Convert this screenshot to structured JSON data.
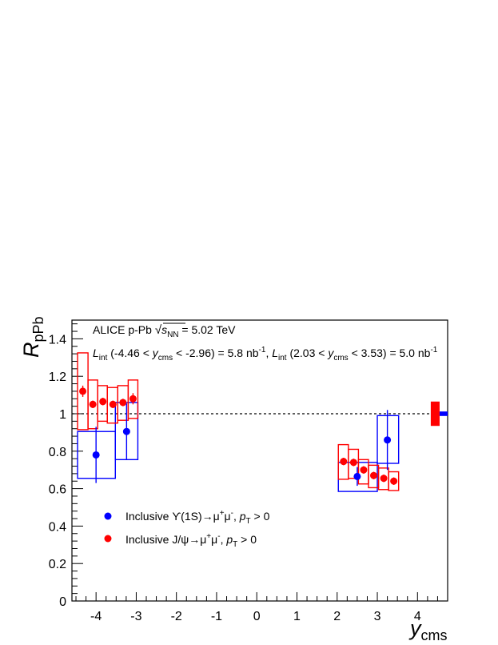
{
  "chart_data": {
    "type": "scatter",
    "title": "",
    "xlabel": "y",
    "xlabel_sub": "cms",
    "ylabel": "R",
    "ylabel_sub": "pPb",
    "xlim": [
      -4.6,
      4.75
    ],
    "ylim": [
      0,
      1.5
    ],
    "x_ticks": [
      -4,
      -3,
      -2,
      -1,
      0,
      1,
      2,
      3,
      4
    ],
    "y_ticks": [
      0,
      0.2,
      0.4,
      0.6,
      0.8,
      1,
      1.2,
      1.4
    ],
    "reference_line": 1,
    "annotation": {
      "line1_prefix": "ALICE p-Pb ",
      "line1_sqrt": "s",
      "line1_sub": "NN",
      "line1_suffix": " = 5.02 TeV",
      "line2_a": "L",
      "line2_a_sub": "int",
      "line2_b": " (-4.46 < ",
      "line2_y": "y",
      "line2_y_sub": "cms",
      "line2_c": " < -2.96) = 5.8 nb",
      "line2_c_sup": "-1",
      "line2_d": ",  ",
      "line2_e": "L",
      "line2_e_sub": "int",
      "line2_f": " (2.03 < ",
      "line2_g": "y",
      "line2_g_sub": "cms",
      "line2_h": " < 3.53) = 5.0 nb",
      "line2_h_sup": "-1"
    },
    "legend": {
      "position": "bottom-left",
      "entries": [
        {
          "prefix": "Inclusive ϒ(1S)→μ",
          "sup1": "+",
          "mid": "μ",
          "sup2": "-",
          "post": ", ",
          "p": "p",
          "psub": "T",
          "tail": " > 0",
          "color": "#0000ff"
        },
        {
          "prefix": "Inclusive J/ψ→μ",
          "sup1": "+",
          "mid": "μ",
          "sup2": "-",
          "post": ", ",
          "p": "p",
          "psub": "T",
          "tail": " > 0",
          "color": "#ff0000"
        }
      ]
    },
    "series": [
      {
        "name": "Inclusive ϒ(1S)→μ+μ-, pT > 0",
        "color": "#0000ff",
        "points": [
          {
            "x": -4.0,
            "y": 0.78,
            "yerr": 0.15,
            "sys_xlo": -4.46,
            "sys_xhi": -3.52,
            "sys_ylo": 0.655,
            "sys_yhi": 0.905
          },
          {
            "x": -3.24,
            "y": 0.905,
            "yerr": 0.15,
            "sys_xlo": -3.52,
            "sys_xhi": -2.96,
            "sys_ylo": 0.755,
            "sys_yhi": 1.06
          },
          {
            "x": 2.5,
            "y": 0.665,
            "yerr": 0.05,
            "sys_xlo": 2.03,
            "sys_xhi": 3.0,
            "sys_ylo": 0.585,
            "sys_yhi": 0.74
          },
          {
            "x": 3.25,
            "y": 0.86,
            "yerr": 0.16,
            "sys_xlo": 3.0,
            "sys_xhi": 3.53,
            "sys_ylo": 0.735,
            "sys_yhi": 0.99
          }
        ]
      },
      {
        "name": "Inclusive J/ψ→μ+μ-, pT > 0",
        "color": "#ff0000",
        "points": [
          {
            "x": -4.33,
            "y": 1.12,
            "yerr": 0.03,
            "sys_xlo": -4.46,
            "sys_xhi": -4.2,
            "sys_ylo": 0.915,
            "sys_yhi": 1.325
          },
          {
            "x": -4.08,
            "y": 1.05,
            "yerr": 0.02,
            "sys_xlo": -4.2,
            "sys_xhi": -3.96,
            "sys_ylo": 0.92,
            "sys_yhi": 1.18
          },
          {
            "x": -3.83,
            "y": 1.065,
            "yerr": 0.02,
            "sys_xlo": -3.96,
            "sys_xhi": -3.72,
            "sys_ylo": 0.96,
            "sys_yhi": 1.15
          },
          {
            "x": -3.58,
            "y": 1.05,
            "yerr": 0.02,
            "sys_xlo": -3.72,
            "sys_xhi": -3.46,
            "sys_ylo": 0.95,
            "sys_yhi": 1.14
          },
          {
            "x": -3.33,
            "y": 1.06,
            "yerr": 0.02,
            "sys_xlo": -3.46,
            "sys_xhi": -3.2,
            "sys_ylo": 0.965,
            "sys_yhi": 1.15
          },
          {
            "x": -3.08,
            "y": 1.08,
            "yerr": 0.03,
            "sys_xlo": -3.2,
            "sys_xhi": -2.96,
            "sys_ylo": 0.975,
            "sys_yhi": 1.18
          },
          {
            "x": 2.16,
            "y": 0.745,
            "yerr": 0.02,
            "sys_xlo": 2.03,
            "sys_xhi": 2.28,
            "sys_ylo": 0.65,
            "sys_yhi": 0.835
          },
          {
            "x": 2.41,
            "y": 0.74,
            "yerr": 0.02,
            "sys_xlo": 2.28,
            "sys_xhi": 2.53,
            "sys_ylo": 0.655,
            "sys_yhi": 0.81
          },
          {
            "x": 2.66,
            "y": 0.7,
            "yerr": 0.02,
            "sys_xlo": 2.53,
            "sys_xhi": 2.78,
            "sys_ylo": 0.625,
            "sys_yhi": 0.755
          },
          {
            "x": 2.91,
            "y": 0.67,
            "yerr": 0.02,
            "sys_xlo": 2.78,
            "sys_xhi": 3.03,
            "sys_ylo": 0.605,
            "sys_yhi": 0.725
          },
          {
            "x": 3.16,
            "y": 0.655,
            "yerr": 0.02,
            "sys_xlo": 3.03,
            "sys_xhi": 3.28,
            "sys_ylo": 0.595,
            "sys_yhi": 0.71
          },
          {
            "x": 3.41,
            "y": 0.64,
            "yerr": 0.02,
            "sys_xlo": 3.28,
            "sys_xhi": 3.53,
            "sys_ylo": 0.59,
            "sys_yhi": 0.69
          }
        ]
      }
    ],
    "global_uncertainty": [
      {
        "series": "J/psi",
        "color": "#ff0000",
        "ylo": 0.935,
        "yhi": 1.065
      },
      {
        "series": "Upsilon",
        "color": "#0000ff",
        "ylo": 0.988,
        "yhi": 1.012
      }
    ]
  }
}
